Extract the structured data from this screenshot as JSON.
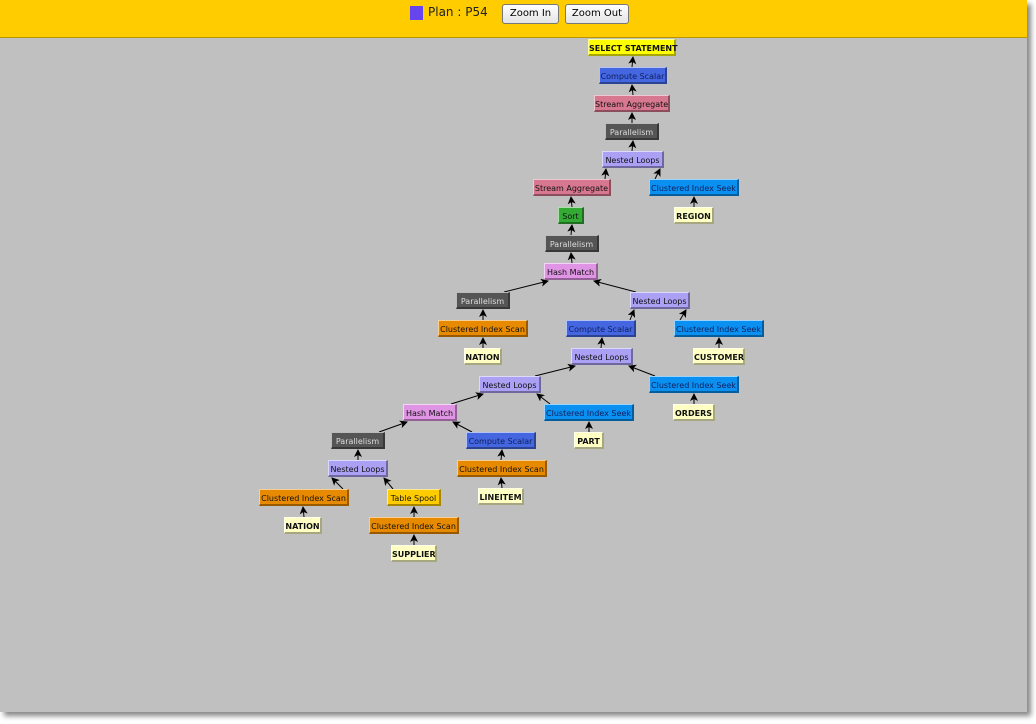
{
  "header": {
    "legend_color": "#6644ee",
    "plan_label": "Plan : P54",
    "zoom_in": "Zoom In",
    "zoom_out": "Zoom Out"
  },
  "colors": {
    "select": "#ffff00",
    "compute": "#4466e0",
    "stream": "#d87890",
    "parallel": "#555555",
    "nested": "#aaa0f4",
    "seek": "#0a90f0",
    "table": "#ffffc4",
    "sort": "#33aa33",
    "hash": "#e094e4",
    "scan": "#e88a00",
    "spool": "#ffcc00"
  },
  "nodes": [
    {
      "label": "SELECT STATEMENT",
      "kind": "select",
      "parent": null
    },
    {
      "label": "Compute Scalar",
      "kind": "compute",
      "parent": 0
    },
    {
      "label": "Stream Aggregate",
      "kind": "stream",
      "parent": 1
    },
    {
      "label": "Parallelism",
      "kind": "parallel",
      "parent": 2
    },
    {
      "label": "Nested Loops",
      "kind": "nested",
      "parent": 3
    },
    {
      "label": "Stream Aggregate",
      "kind": "stream",
      "parent": 4
    },
    {
      "label": "Clustered Index Seek",
      "kind": "seek",
      "parent": 4
    },
    {
      "label": "REGION",
      "kind": "table",
      "parent": 6
    },
    {
      "label": "Sort",
      "kind": "sort",
      "parent": 5
    },
    {
      "label": "Parallelism",
      "kind": "parallel",
      "parent": 8
    },
    {
      "label": "Hash Match",
      "kind": "hash",
      "parent": 9
    },
    {
      "label": "Parallelism",
      "kind": "parallel",
      "parent": 10
    },
    {
      "label": "Nested Loops",
      "kind": "nested",
      "parent": 10
    },
    {
      "label": "Clustered Index Scan",
      "kind": "scan",
      "parent": 11
    },
    {
      "label": "NATION",
      "kind": "table",
      "parent": 13
    },
    {
      "label": "Compute Scalar",
      "kind": "compute",
      "parent": 12
    },
    {
      "label": "Clustered Index Seek",
      "kind": "seek",
      "parent": 12
    },
    {
      "label": "CUSTOMER",
      "kind": "table",
      "parent": 16
    },
    {
      "label": "Nested Loops",
      "kind": "nested",
      "parent": 15
    },
    {
      "label": "Clustered Index Seek",
      "kind": "seek",
      "parent": 18
    },
    {
      "label": "ORDERS",
      "kind": "table",
      "parent": 19
    },
    {
      "label": "Nested Loops",
      "kind": "nested",
      "parent": 18
    },
    {
      "label": "Hash Match",
      "kind": "hash",
      "parent": 21
    },
    {
      "label": "Clustered Index Seek",
      "kind": "seek",
      "parent": 21
    },
    {
      "label": "PART",
      "kind": "table",
      "parent": 23
    },
    {
      "label": "Parallelism",
      "kind": "parallel",
      "parent": 22
    },
    {
      "label": "Compute Scalar",
      "kind": "compute",
      "parent": 22
    },
    {
      "label": "Nested Loops",
      "kind": "nested",
      "parent": 25
    },
    {
      "label": "Clustered Index Scan",
      "kind": "scan",
      "parent": 26
    },
    {
      "label": "LINEITEM",
      "kind": "table",
      "parent": 28
    },
    {
      "label": "Clustered Index Scan",
      "kind": "scan",
      "parent": 27
    },
    {
      "label": "Table Spool",
      "kind": "spool",
      "parent": 27
    },
    {
      "label": "NATION",
      "kind": "table",
      "parent": 30
    },
    {
      "label": "Clustered Index Scan",
      "kind": "scan",
      "parent": 31
    },
    {
      "label": "SUPPLIER",
      "kind": "table",
      "parent": 33
    }
  ]
}
